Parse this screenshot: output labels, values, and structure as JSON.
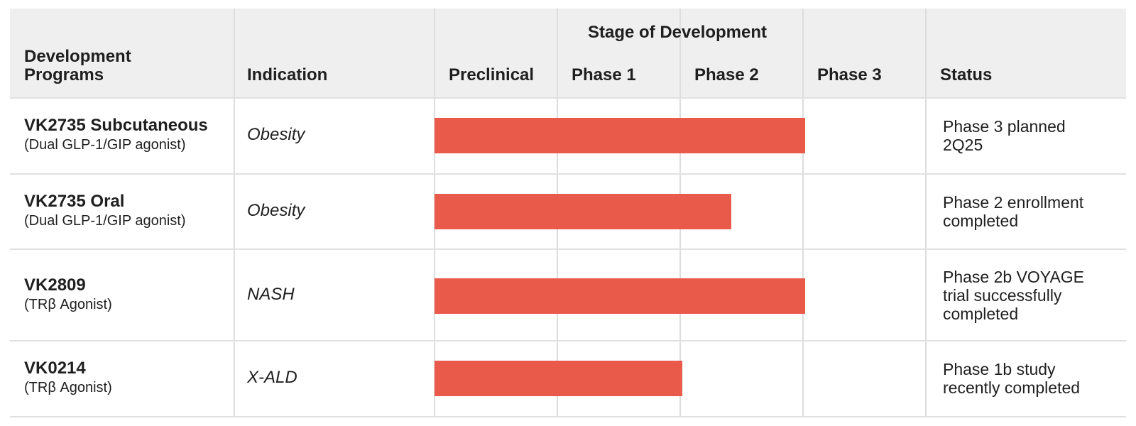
{
  "header": {
    "programs": "Development\nPrograms",
    "indication": "Indication",
    "stage_group": "Stage of Development",
    "status": "Status"
  },
  "chart_data": {
    "type": "bar",
    "orientation": "horizontal",
    "stages": [
      "Preclinical",
      "Phase 1",
      "Phase 2",
      "Phase 3"
    ],
    "rows": [
      {
        "program": "VK2735 Subcutaneous",
        "program_class": "(Dual GLP-1/GIP agonist)",
        "indication": "Obesity",
        "progress": 3.0,
        "status": "Phase 3 planned\n2Q25"
      },
      {
        "program": "VK2735 Oral",
        "program_class": "(Dual GLP-1/GIP agonist)",
        "indication": "Obesity",
        "progress": 2.4,
        "status": "Phase 2 enrollment\ncompleted"
      },
      {
        "program": "VK2809",
        "program_class": "(TRβ Agonist)",
        "indication": "NASH",
        "progress": 3.0,
        "status": "Phase 2b VOYAGE\ntrial successfully\ncompleted"
      },
      {
        "program": "VK0214",
        "program_class": "(TRβ Agonist)",
        "indication": "X-ALD",
        "progress": 2.0,
        "status": "Phase 1b study\nrecently completed"
      }
    ],
    "colors": {
      "bar": "#ea5a4b",
      "header_bg": "#efefef",
      "grid": "#dddddd"
    }
  }
}
